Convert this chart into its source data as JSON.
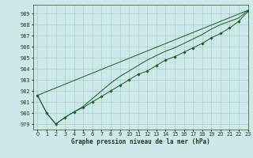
{
  "title": "Graphe pression niveau de la mer (hPa)",
  "bg_color": "#cce8e8",
  "grid_color": "#aacccc",
  "line_color": "#1a5c1a",
  "xlim": [
    -0.5,
    23
  ],
  "ylim": [
    978.5,
    989.8
  ],
  "yticks": [
    979,
    980,
    981,
    982,
    983,
    984,
    985,
    986,
    987,
    988,
    989
  ],
  "xticks": [
    0,
    1,
    2,
    3,
    4,
    5,
    6,
    7,
    8,
    9,
    10,
    11,
    12,
    13,
    14,
    15,
    16,
    17,
    18,
    19,
    20,
    21,
    22,
    23
  ],
  "series1_x": [
    0,
    1,
    2,
    3,
    4,
    5,
    6,
    7,
    8,
    9,
    10,
    11,
    12,
    13,
    14,
    15,
    16,
    17,
    18,
    19,
    20,
    21,
    22,
    23
  ],
  "series1_y": [
    981.6,
    980.0,
    979.0,
    979.6,
    980.1,
    980.5,
    981.0,
    981.5,
    982.0,
    982.5,
    983.0,
    983.5,
    983.8,
    984.3,
    984.8,
    985.1,
    985.5,
    985.9,
    986.3,
    986.8,
    987.2,
    987.7,
    988.3,
    989.2
  ],
  "series2_x": [
    0,
    1,
    2,
    3,
    4,
    5,
    6,
    7,
    8,
    9,
    10,
    11,
    12,
    13,
    14,
    15,
    16,
    17,
    18,
    19,
    20,
    21,
    22,
    23
  ],
  "series2_y": [
    981.6,
    980.0,
    979.0,
    979.6,
    980.1,
    980.6,
    981.3,
    982.0,
    982.7,
    983.3,
    983.8,
    984.3,
    984.8,
    985.2,
    985.6,
    985.9,
    986.3,
    986.7,
    987.1,
    987.6,
    988.0,
    988.3,
    988.6,
    989.3
  ],
  "series3_x": [
    0,
    23
  ],
  "series3_y": [
    981.6,
    989.3
  ],
  "ylabel_fontsize": 5.0,
  "xlabel_fontsize": 5.5,
  "tick_fontsize": 4.8
}
